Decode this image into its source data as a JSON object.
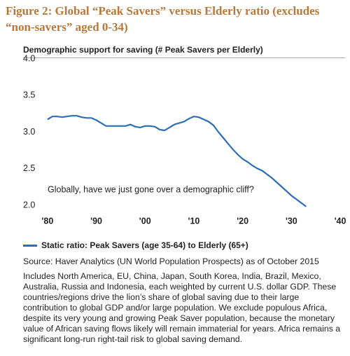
{
  "chart_data": {
    "type": "line",
    "title": "Figure 2: Global “Peak Savers” versus Elderly ratio (excludes “non-savers” aged 0-34)",
    "subtitle": "Demographic support for saving (# Peak Savers per Elderly)",
    "annotation": "Globally, have we just gone over a demographic cliff?",
    "x": [
      1980,
      1981,
      1982,
      1983,
      1984,
      1985,
      1986,
      1987,
      1988,
      1989,
      1990,
      1991,
      1992,
      1993,
      1994,
      1995,
      1996,
      1997,
      1998,
      1999,
      2000,
      2001,
      2002,
      2003,
      2004,
      2005,
      2006,
      2007,
      2008,
      2009,
      2010,
      2011,
      2012,
      2013,
      2014,
      2015,
      2016,
      2017,
      2018,
      2019,
      2020,
      2021,
      2022,
      2023,
      2024,
      2025,
      2026,
      2027,
      2028,
      2029,
      2030,
      2031,
      2032,
      2033
    ],
    "series": [
      {
        "name": "Static ratio: Peak Savers (age 35-64) to Elderly (65+)",
        "color": "#2e6db4",
        "values": [
          3.25,
          3.29,
          3.29,
          3.28,
          3.29,
          3.3,
          3.3,
          3.28,
          3.27,
          3.27,
          3.24,
          3.2,
          3.16,
          3.16,
          3.16,
          3.16,
          3.16,
          3.18,
          3.15,
          3.14,
          3.16,
          3.16,
          3.15,
          3.11,
          3.1,
          3.14,
          3.18,
          3.2,
          3.22,
          3.26,
          3.29,
          3.28,
          3.25,
          3.22,
          3.17,
          3.08,
          3.0,
          2.92,
          2.84,
          2.77,
          2.71,
          2.67,
          2.62,
          2.58,
          2.55,
          2.5,
          2.45,
          2.39,
          2.33,
          2.27,
          2.21,
          2.16,
          2.11,
          2.06
        ]
      }
    ],
    "xlim": [
      1975,
      2041
    ],
    "xticks": [
      {
        "value": 1980,
        "label": "'80"
      },
      {
        "value": 1990,
        "label": "'90"
      },
      {
        "value": 2000,
        "label": "'00"
      },
      {
        "value": 2010,
        "label": "'10"
      },
      {
        "value": 2020,
        "label": "'20"
      },
      {
        "value": 2030,
        "label": "'30"
      },
      {
        "value": 2040,
        "label": "'40"
      }
    ],
    "ylim": [
      2.0,
      4.0
    ],
    "yticks": [
      {
        "value": 2,
        "label": "2.0"
      },
      2.5,
      {
        "value": 3,
        "label": "3.0"
      },
      3.5,
      {
        "value": 4,
        "label": "4.0"
      }
    ],
    "grid": false,
    "source": "Source: Haver Analytics (UN World Population Prospects) as of October 2015",
    "notes": "Includes North America, EU, China, Japan, South Korea, India, Brazil, Mexico, Australia, Russia and Indonesia, each weighted by current U.S. dollar GDP. These countries/regions drive the lion’s share of global saving due to their large contribution to global GDP and/or large population. We exclude populous Africa, despite its very young and growing Peak Saver population, because the monetary value of African saving flows likely will remain immaterial for years. Africa remains a significant long-run right-tail risk to global saving demand."
  }
}
